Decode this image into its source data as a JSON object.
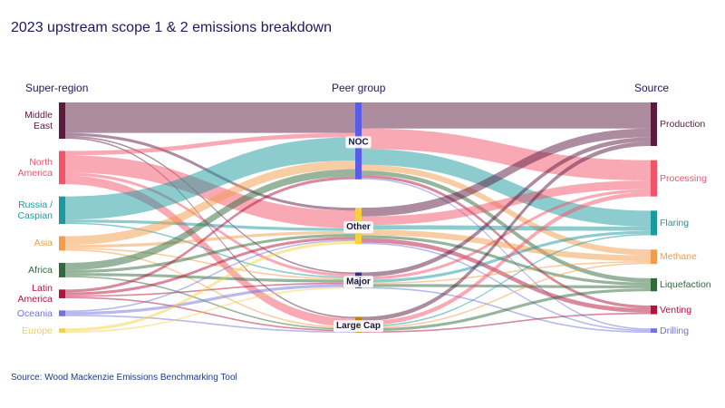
{
  "chart_data": {
    "type": "sankey",
    "title": "2023 upstream scope 1 & 2 emissions breakdown",
    "source": "Source:  Wood Mackenzie Emissions Benchmarking Tool",
    "columns": [
      "Super-region",
      "Peer group",
      "Source"
    ],
    "nodes": [
      {
        "name": "Middle East",
        "color": "#5c1a3f",
        "column": 0
      },
      {
        "name": "North America",
        "color": "#f2546a",
        "column": 0
      },
      {
        "name": "Russia / Caspian",
        "color": "#1b9a9e",
        "column": 0
      },
      {
        "name": "Asia",
        "color": "#f39c4a",
        "column": 0
      },
      {
        "name": "Africa",
        "color": "#2f6b3a",
        "column": 0
      },
      {
        "name": "Latin America",
        "color": "#b3123b",
        "column": 0
      },
      {
        "name": "Oceania",
        "color": "#6f73e0",
        "column": 0
      },
      {
        "name": "Europe",
        "color": "#f5d142",
        "column": 0
      },
      {
        "name": "NOC",
        "color": "#5b5bea",
        "column": 1
      },
      {
        "name": "Other",
        "color": "#f5d142",
        "column": 1
      },
      {
        "name": "Major",
        "color": "#3a2d7a",
        "column": 1
      },
      {
        "name": "Large Cap",
        "color": "#b8860b",
        "column": 1
      },
      {
        "name": "Production",
        "color": "#5c1a3f",
        "column": 2
      },
      {
        "name": "Processing",
        "color": "#f2546a",
        "column": 2
      },
      {
        "name": "Flaring",
        "color": "#1b9a9e",
        "column": 2
      },
      {
        "name": "Methane",
        "color": "#f39c4a",
        "column": 2
      },
      {
        "name": "Liquefaction",
        "color": "#2f6b3a",
        "column": 2
      },
      {
        "name": "Venting",
        "color": "#b3123b",
        "column": 2
      },
      {
        "name": "Drilling",
        "color": "#6f73e0",
        "column": 2
      }
    ],
    "links": [
      {
        "source": "Middle East",
        "target": "NOC",
        "value": 21
      },
      {
        "source": "Middle East",
        "target": "Other",
        "value": 2
      },
      {
        "source": "Middle East",
        "target": "Major",
        "value": 1
      },
      {
        "source": "Middle East",
        "target": "Large Cap",
        "value": 1
      },
      {
        "source": "North America",
        "target": "NOC",
        "value": 3
      },
      {
        "source": "North America",
        "target": "Other",
        "value": 12
      },
      {
        "source": "North America",
        "target": "Major",
        "value": 2
      },
      {
        "source": "North America",
        "target": "Large Cap",
        "value": 6
      },
      {
        "source": "Russia / Caspian",
        "target": "NOC",
        "value": 16
      },
      {
        "source": "Russia / Caspian",
        "target": "Other",
        "value": 2
      },
      {
        "source": "Russia / Caspian",
        "target": "Major",
        "value": 1
      },
      {
        "source": "Asia",
        "target": "NOC",
        "value": 6
      },
      {
        "source": "Asia",
        "target": "Other",
        "value": 2
      },
      {
        "source": "Asia",
        "target": "Major",
        "value": 1
      },
      {
        "source": "Asia",
        "target": "Large Cap",
        "value": 1
      },
      {
        "source": "Africa",
        "target": "NOC",
        "value": 5
      },
      {
        "source": "Africa",
        "target": "Other",
        "value": 2
      },
      {
        "source": "Africa",
        "target": "Major",
        "value": 2
      },
      {
        "source": "Africa",
        "target": "Large Cap",
        "value": 1
      },
      {
        "source": "Latin America",
        "target": "NOC",
        "value": 2
      },
      {
        "source": "Latin America",
        "target": "Other",
        "value": 2
      },
      {
        "source": "Latin America",
        "target": "Major",
        "value": 1
      },
      {
        "source": "Latin America",
        "target": "Large Cap",
        "value": 1
      },
      {
        "source": "Oceania",
        "target": "Other",
        "value": 1
      },
      {
        "source": "Oceania",
        "target": "Major",
        "value": 2
      },
      {
        "source": "Oceania",
        "target": "Large Cap",
        "value": 1
      },
      {
        "source": "Europe",
        "target": "Other",
        "value": 2
      },
      {
        "source": "Europe",
        "target": "Major",
        "value": 1
      },
      {
        "source": "NOC",
        "target": "Production",
        "value": 18
      },
      {
        "source": "NOC",
        "target": "Processing",
        "value": 14
      },
      {
        "source": "NOC",
        "target": "Flaring",
        "value": 11
      },
      {
        "source": "NOC",
        "target": "Methane",
        "value": 4
      },
      {
        "source": "NOC",
        "target": "Liquefaction",
        "value": 3
      },
      {
        "source": "NOC",
        "target": "Venting",
        "value": 2
      },
      {
        "source": "NOC",
        "target": "Drilling",
        "value": 1
      },
      {
        "source": "Other",
        "target": "Production",
        "value": 6
      },
      {
        "source": "Other",
        "target": "Processing",
        "value": 6
      },
      {
        "source": "Other",
        "target": "Flaring",
        "value": 3
      },
      {
        "source": "Other",
        "target": "Methane",
        "value": 4
      },
      {
        "source": "Other",
        "target": "Liquefaction",
        "value": 2
      },
      {
        "source": "Other",
        "target": "Venting",
        "value": 3
      },
      {
        "source": "Other",
        "target": "Drilling",
        "value": 1
      },
      {
        "source": "Major",
        "target": "Production",
        "value": 3
      },
      {
        "source": "Major",
        "target": "Processing",
        "value": 2
      },
      {
        "source": "Major",
        "target": "Flaring",
        "value": 2
      },
      {
        "source": "Major",
        "target": "Methane",
        "value": 1
      },
      {
        "source": "Major",
        "target": "Liquefaction",
        "value": 2
      },
      {
        "source": "Major",
        "target": "Drilling",
        "value": 1
      },
      {
        "source": "Large Cap",
        "target": "Production",
        "value": 3
      },
      {
        "source": "Large Cap",
        "target": "Processing",
        "value": 3
      },
      {
        "source": "Large Cap",
        "target": "Flaring",
        "value": 1
      },
      {
        "source": "Large Cap",
        "target": "Methane",
        "value": 1
      },
      {
        "source": "Large Cap",
        "target": "Liquefaction",
        "value": 2
      },
      {
        "source": "Large Cap",
        "target": "Venting",
        "value": 1
      }
    ]
  }
}
